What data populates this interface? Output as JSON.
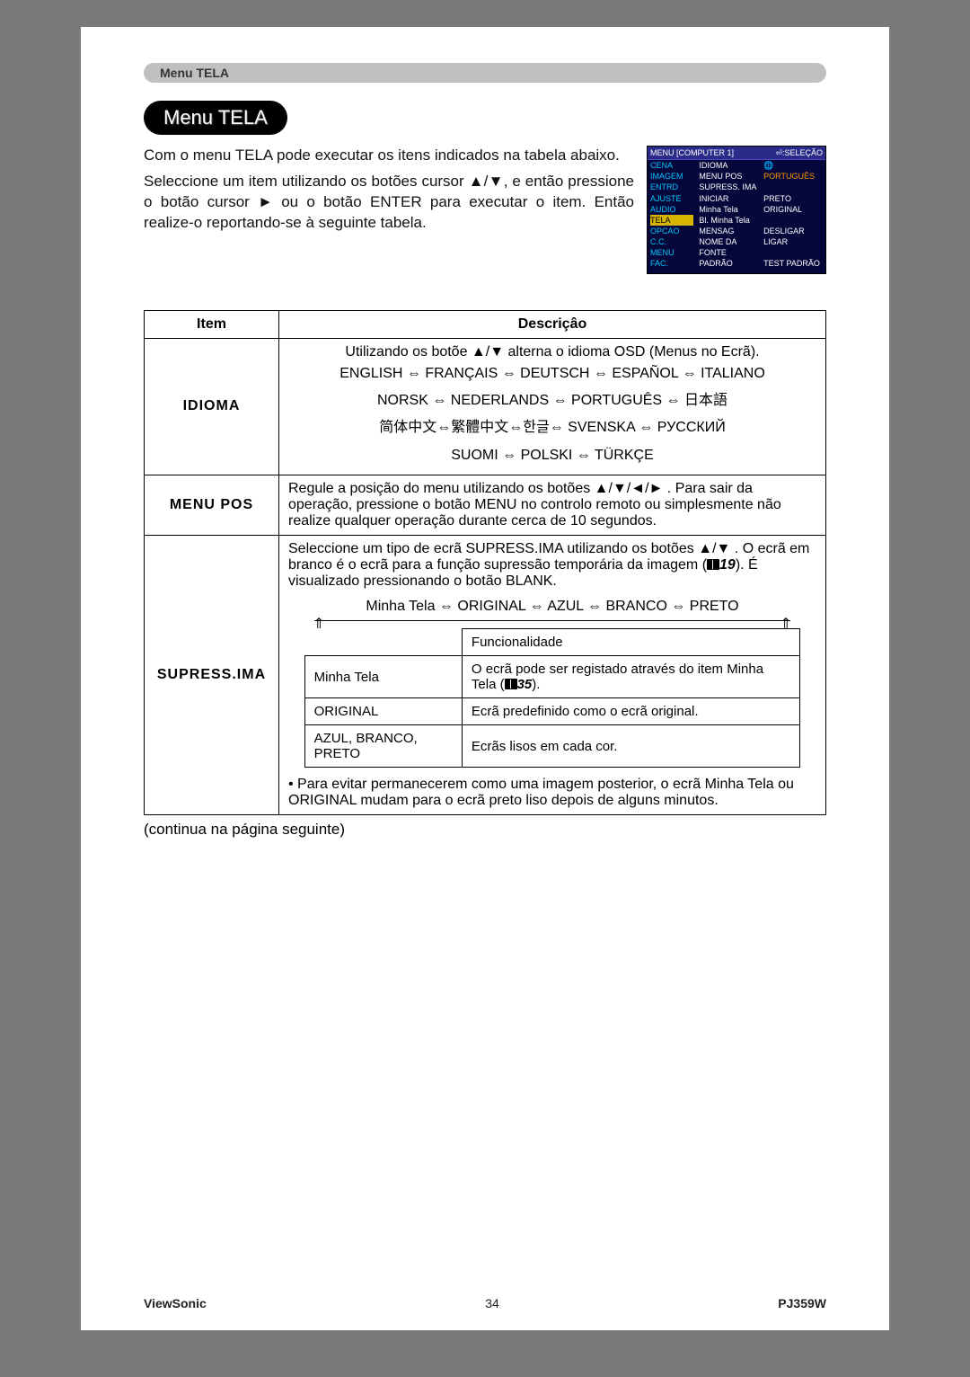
{
  "breadcrumb": "Menu TELA",
  "title": "Menu TELA",
  "intro_p1": "Com o menu TELA pode executar os itens indicados na tabela abaixo.",
  "intro_p2": "Seleccione um item utilizando os botões cursor ▲/▼, e então pressione o botão cursor ► ou o botão ENTER para executar o item. Então realize-o reportando-se à seguinte tabela.",
  "osd": {
    "top_left": "MENU [COMPUTER 1]",
    "top_right": "⏎:SELEÇÃO",
    "col1": [
      "CENA",
      "IMAGEM",
      "ENTRD",
      "AJUSTE",
      "AUDIO",
      "TELA",
      "OPCAO",
      "C.C.",
      "MENU FAC."
    ],
    "col1_highlight_index": 5,
    "col2": [
      "IDIOMA",
      "MENU POS",
      "SUPRESS. IMA",
      "INICIAR",
      "Minha Tela",
      "Bl. Minha Tela",
      "MENSAG",
      "NOME DA FONTE",
      "PADRÃO"
    ],
    "col3": [
      "🌐PORTUGUÊS",
      "",
      "PRETO",
      "ORIGINAL",
      "",
      "DESLIGAR",
      "LIGAR",
      "",
      "TEST PADRÃO"
    ],
    "col3_highlight_index": 0
  },
  "table": {
    "head_item": "Item",
    "head_desc": "Descriçâo",
    "idioma": {
      "label": "IDIOMA",
      "intro": "Utilizando os botõe ▲/▼ alterna o idioma OSD (Menus no Ecrã).",
      "row1": "ENGLISH ⇔ FRANÇAIS ⇔ DEUTSCH ⇔ ESPAÑOL ⇔ ITALIANO",
      "row2": "NORSK ⇔ NEDERLANDS ⇔ PORTUGUÊS ⇔ 日本語",
      "row3": "简体中文⇔繁體中文⇔한글⇔ SVENSKA ⇔ РУССКИЙ",
      "row4": "SUOMI ⇔ POLSKI ⇔ TÜRKÇE"
    },
    "menupos": {
      "label": "MENU POS",
      "text": "Regule a posição do menu utilizando os botões ▲/▼/◄/► .  Para sair da operação, pressione o botão MENU no controlo remoto ou simplesmente não realize qualquer operação durante cerca de 10 segundos."
    },
    "supress": {
      "label": "SUPRESS.IMA",
      "p1a": "Seleccione um tipo de ecrã SUPRESS.IMA utilizando os botões ▲/▼ . O ecrã em branco é o ecrã para a função supressão temporária da imagem (",
      "p1_ref": "19",
      "p1b": "). É visualizado pressionando o botão BLANK.",
      "seq": "Minha Tela ⇔ ORIGINAL ⇔ AZUL ⇔ BRANCO ⇔ PRETO",
      "inner": {
        "h2": "Funcionalidade",
        "r1c1": "Minha Tela",
        "r1c2a": "O ecrã pode ser registado através do item Minha Tela (",
        "r1_ref": "35",
        "r1c2b": ").",
        "r2c1": "ORIGINAL",
        "r2c2": "Ecrã predefinido como o ecrã original.",
        "r3c1": "AZUL, BRANCO, PRETO",
        "r3c2": "Ecrãs lisos em cada cor."
      },
      "note": "• Para evitar permanecerem como uma imagem posterior, o ecrã Minha Tela ou ORIGINAL mudam para o ecrã preto liso depois de alguns minutos."
    }
  },
  "continue_note": "(continua na página seguinte)",
  "footer": {
    "brand": "ViewSonic",
    "page": "34",
    "model": "PJ359W"
  },
  "colors": {
    "page_bg": "#ffffff",
    "body_bg": "#7a7a7a",
    "breadcrumb_bg": "#c0c0c0",
    "pill_bg": "#000000",
    "osd_bg": "#05063a",
    "osd_highlight": "#d6b400",
    "osd_cyan": "#00c8ff",
    "osd_orange": "#ff9a00"
  }
}
